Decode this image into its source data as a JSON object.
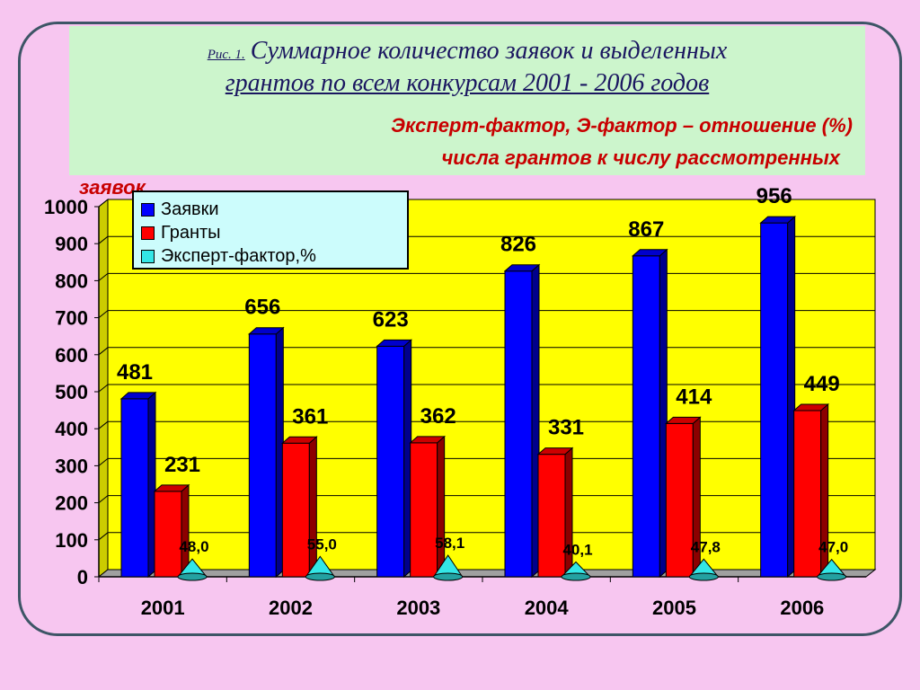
{
  "title": {
    "fig_label": "Рис. 1.",
    "line1": "Суммарное количество заявок и выделенных",
    "line2": "грантов по всем конкурсам 2001 - 2006 годов"
  },
  "subtitle": {
    "line1": "Эксперт-фактор, Э-фактор – отношение (%)",
    "line2": "числа грантов к числу рассмотренных",
    "line3": "заявок"
  },
  "colors": {
    "background": "#f7c6f0",
    "plot_area": "#ffff00",
    "applications": "#0000ff",
    "grants": "#ff0000",
    "expert_factor": "#33e6e6",
    "title_box": "#ccf5cc",
    "legend_box": "#ccfcfc"
  },
  "chart_data": {
    "type": "bar",
    "categories": [
      "2001",
      "2002",
      "2003",
      "2004",
      "2005",
      "2006"
    ],
    "series": [
      {
        "name": "Заявки",
        "values": [
          481,
          656,
          623,
          826,
          867,
          956
        ],
        "labels": [
          "481",
          "656",
          "623",
          "826",
          "867",
          "956"
        ]
      },
      {
        "name": "Гранты",
        "values": [
          231,
          361,
          362,
          331,
          414,
          449
        ],
        "labels": [
          "231",
          "361",
          "362",
          "331",
          "414",
          "449"
        ]
      },
      {
        "name": "Эксперт-фактор,%",
        "values": [
          48.0,
          55.0,
          58.1,
          40.1,
          47.8,
          47.0
        ],
        "labels": [
          "48,0",
          "55,0",
          "58,1",
          "40,1",
          "47,8",
          "47,0"
        ]
      }
    ],
    "y_ticks": [
      "0",
      "100",
      "200",
      "300",
      "400",
      "500",
      "600",
      "700",
      "800",
      "900",
      "1000"
    ],
    "ylim": [
      0,
      1000
    ],
    "grid": true,
    "legend": "top-left"
  }
}
